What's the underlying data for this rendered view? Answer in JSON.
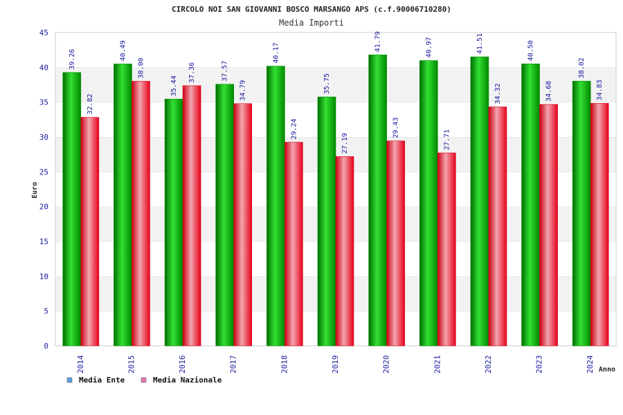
{
  "chart_data": {
    "type": "bar",
    "title": "CIRCOLO NOI SAN GIOVANNI BOSCO MARSANGO APS (c.f.90006710280)",
    "subtitle": "Media Importi",
    "xlabel": "Anno",
    "ylabel": "Euro",
    "ylim": [
      0,
      45
    ],
    "yticks": [
      "0",
      "5",
      "10",
      "15",
      "20",
      "25",
      "30",
      "35",
      "40",
      "45"
    ],
    "categories": [
      "2014",
      "2015",
      "2016",
      "2017",
      "2018",
      "2019",
      "2020",
      "2021",
      "2022",
      "2023",
      "2024"
    ],
    "series": [
      {
        "name": "Media Ente",
        "color": "#00a000",
        "legend_color": "#5aa0e6",
        "values": [
          39.26,
          40.49,
          35.44,
          37.57,
          40.17,
          35.75,
          41.79,
          40.97,
          41.51,
          40.5,
          38.02
        ],
        "labels": [
          "39.26",
          "40.49",
          "35.44",
          "37.57",
          "40.17",
          "35.75",
          "41.79",
          "40.97",
          "41.51",
          "40.50",
          "38.02"
        ]
      },
      {
        "name": "Media Nazionale",
        "color": "#e8001a",
        "legend_color": "#e27ab0",
        "values": [
          32.82,
          38.0,
          37.36,
          34.79,
          29.24,
          27.19,
          29.43,
          27.71,
          34.32,
          34.68,
          34.83
        ],
        "labels": [
          "32.82",
          "38.00",
          "37.36",
          "34.79",
          "29.24",
          "27.19",
          "29.43",
          "27.71",
          "34.32",
          "34.68",
          "34.83"
        ]
      }
    ],
    "grid": true,
    "legend_position": "bottom-left"
  }
}
